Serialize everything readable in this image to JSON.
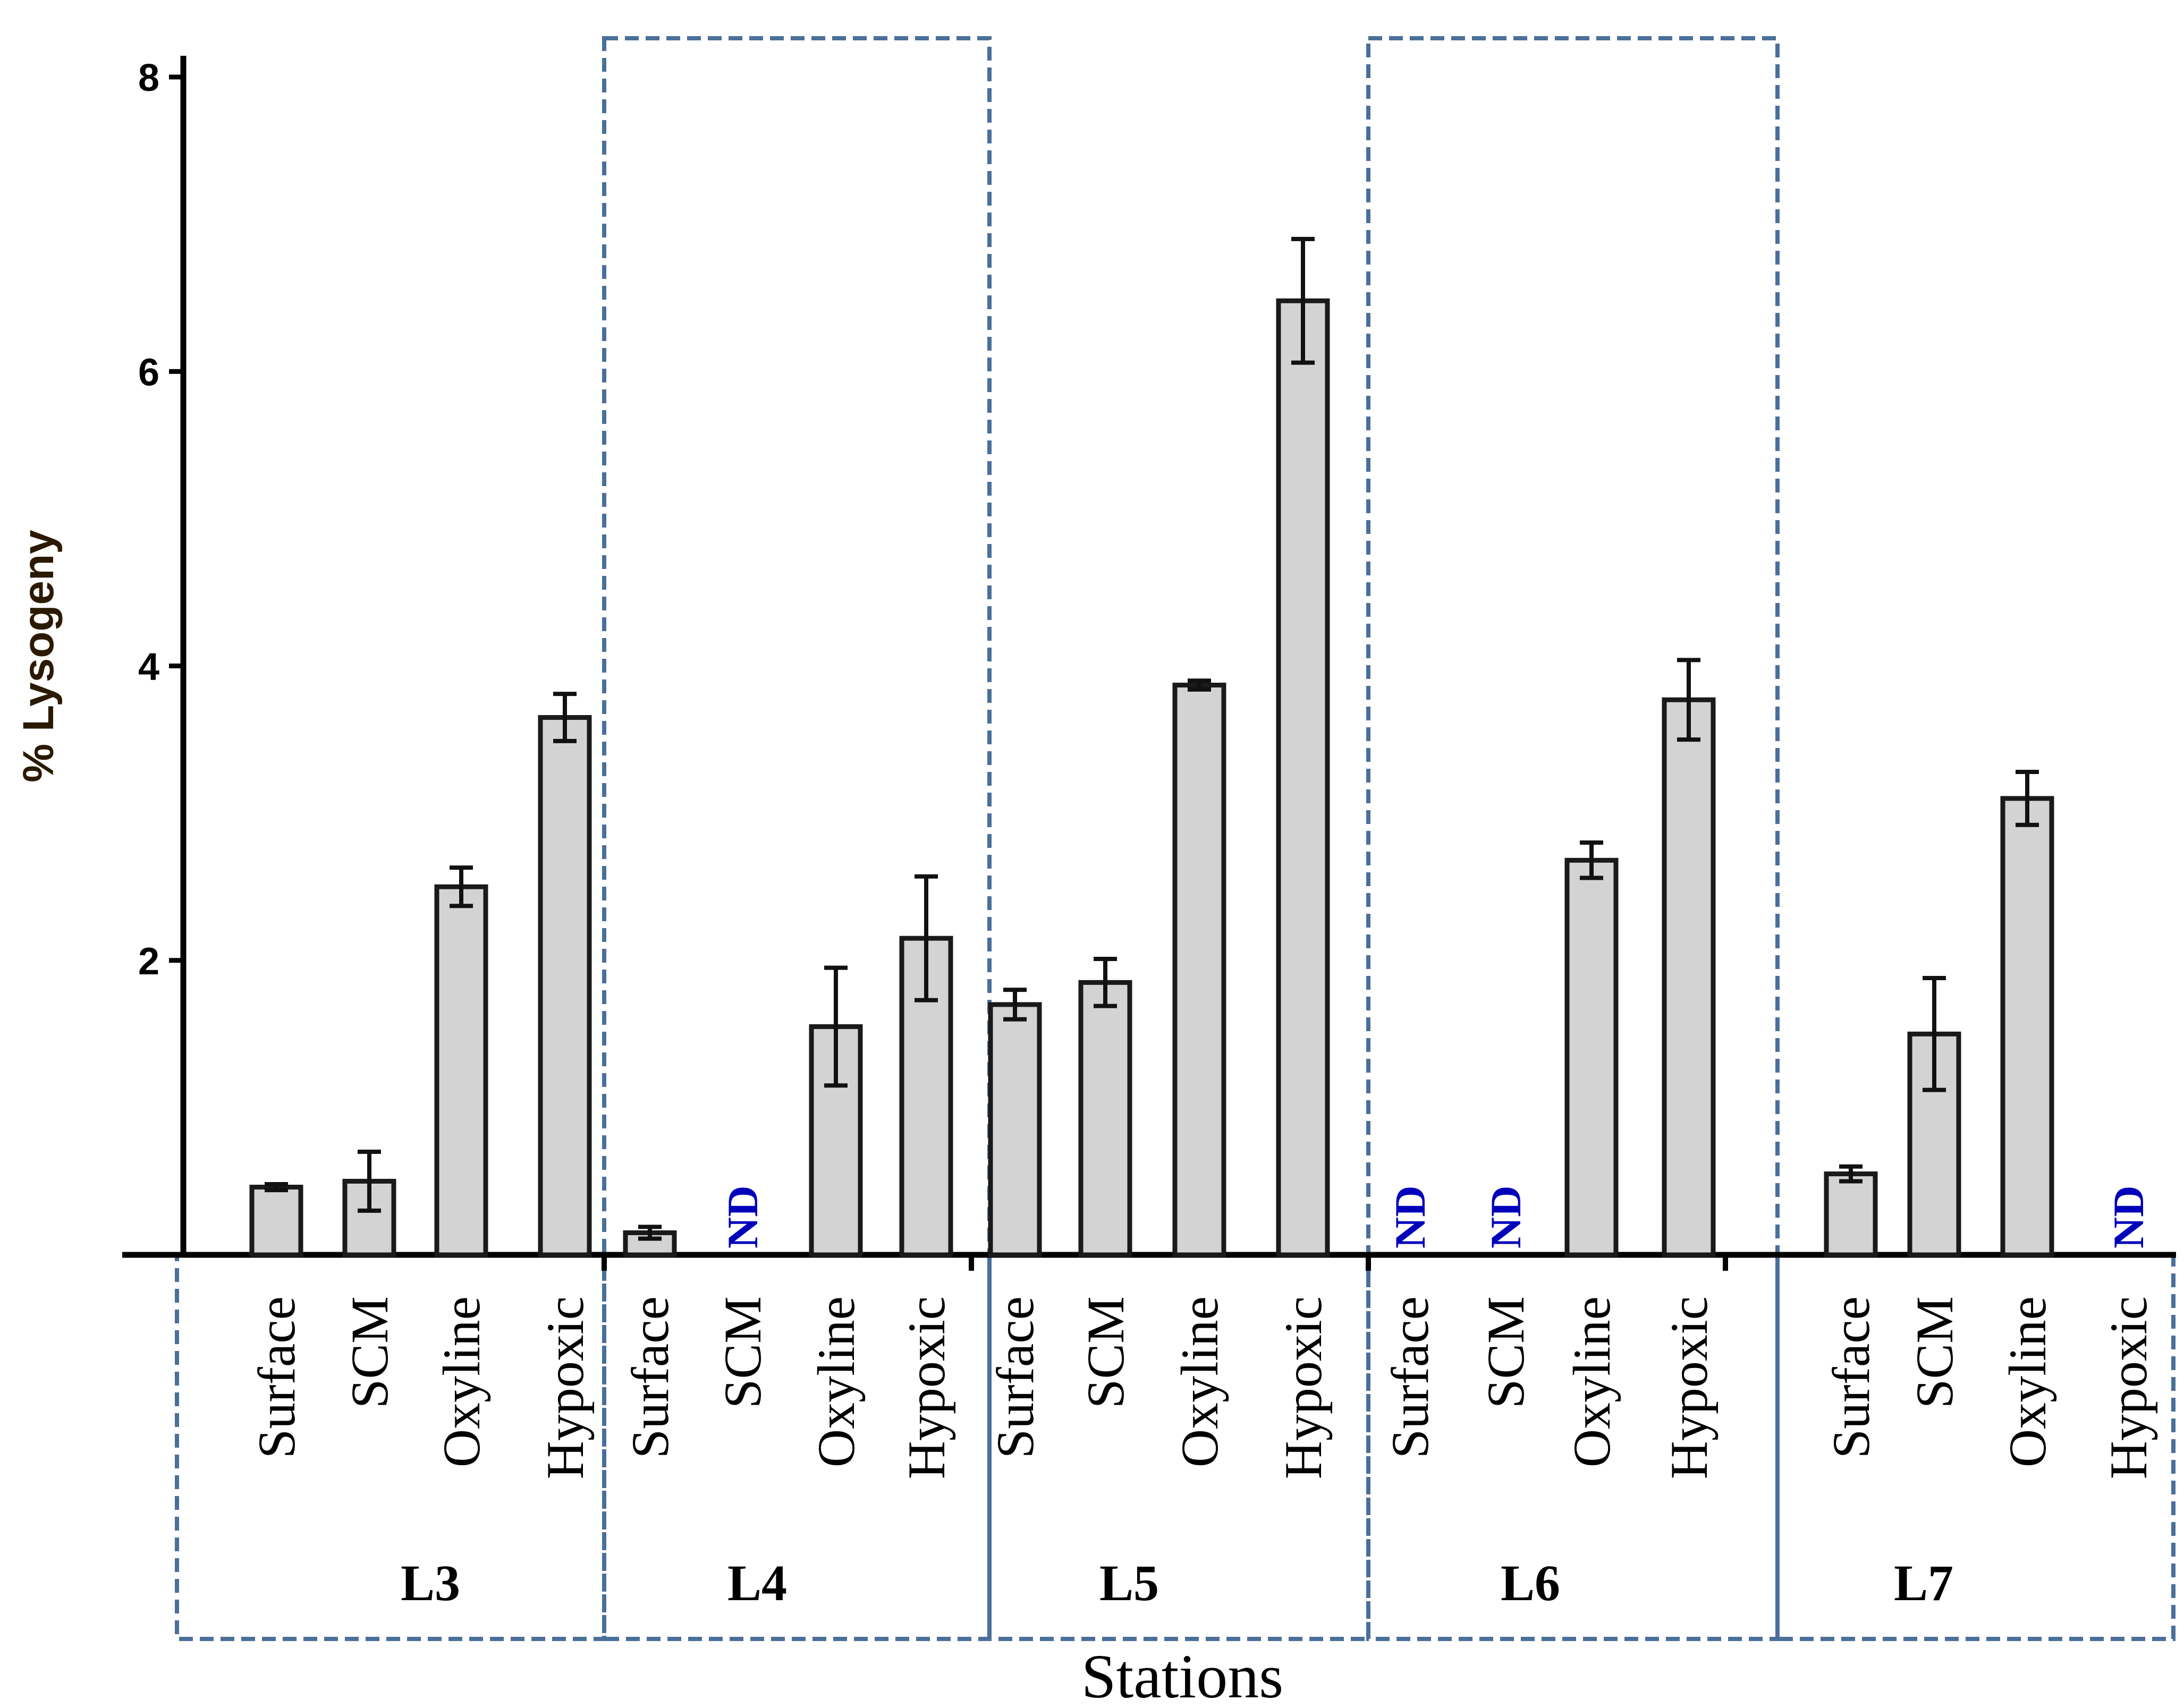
{
  "chart_data": {
    "type": "bar",
    "ylabel": "% Lysogeny",
    "xlabel": "Stations",
    "ylim": [
      0,
      8
    ],
    "yticks": [
      "8",
      "6",
      "4",
      "2"
    ],
    "ytick_values": [
      8,
      6,
      4,
      2
    ],
    "nd_label": "ND",
    "colors": {
      "bar_fill": "#d3d3d3",
      "bar_stroke": "#1a1a1a",
      "box_stroke": "#4a6f99",
      "nd_text": "#0000bb",
      "ylabel_text": "#2b1a00"
    },
    "groups": [
      {
        "station": "L3",
        "bars": [
          {
            "category": "Surface",
            "value": 0.46,
            "err": 0.02,
            "nd": false
          },
          {
            "category": "SCM",
            "value": 0.5,
            "err": 0.2,
            "nd": false
          },
          {
            "category": "Oxyline",
            "value": 2.5,
            "err": 0.13,
            "nd": false
          },
          {
            "category": "Hypoxic",
            "value": 3.65,
            "err": 0.16,
            "nd": false
          }
        ]
      },
      {
        "station": "L4",
        "bars": [
          {
            "category": "Surface",
            "value": 0.15,
            "err": 0.04,
            "nd": false
          },
          {
            "category": "SCM",
            "value": 0,
            "err": 0,
            "nd": true
          },
          {
            "category": "Oxyline",
            "value": 1.55,
            "err": 0.4,
            "nd": false
          },
          {
            "category": "Hypoxic",
            "value": 2.15,
            "err": 0.42,
            "nd": false
          }
        ]
      },
      {
        "station": "L5",
        "bars": [
          {
            "category": "Surface",
            "value": 1.7,
            "err": 0.1,
            "nd": false
          },
          {
            "category": "SCM",
            "value": 1.85,
            "err": 0.16,
            "nd": false
          },
          {
            "category": "Oxyline",
            "value": 3.87,
            "err": 0.03,
            "nd": false
          },
          {
            "category": "Hypoxic",
            "value": 6.48,
            "err": 0.42,
            "nd": false
          }
        ]
      },
      {
        "station": "L6",
        "bars": [
          {
            "category": "Surface",
            "value": 0,
            "err": 0,
            "nd": true
          },
          {
            "category": "SCM",
            "value": 0,
            "err": 0,
            "nd": true
          },
          {
            "category": "Oxyline",
            "value": 2.68,
            "err": 0.12,
            "nd": false
          },
          {
            "category": "Hypoxic",
            "value": 3.77,
            "err": 0.27,
            "nd": false
          }
        ]
      },
      {
        "station": "L7",
        "bars": [
          {
            "category": "Surface",
            "value": 0.55,
            "err": 0.05,
            "nd": false
          },
          {
            "category": "SCM",
            "value": 1.5,
            "err": 0.38,
            "nd": false
          },
          {
            "category": "Oxyline",
            "value": 3.1,
            "err": 0.18,
            "nd": false
          },
          {
            "category": "Hypoxic",
            "value": 0,
            "err": 0,
            "nd": true
          }
        ]
      }
    ]
  }
}
